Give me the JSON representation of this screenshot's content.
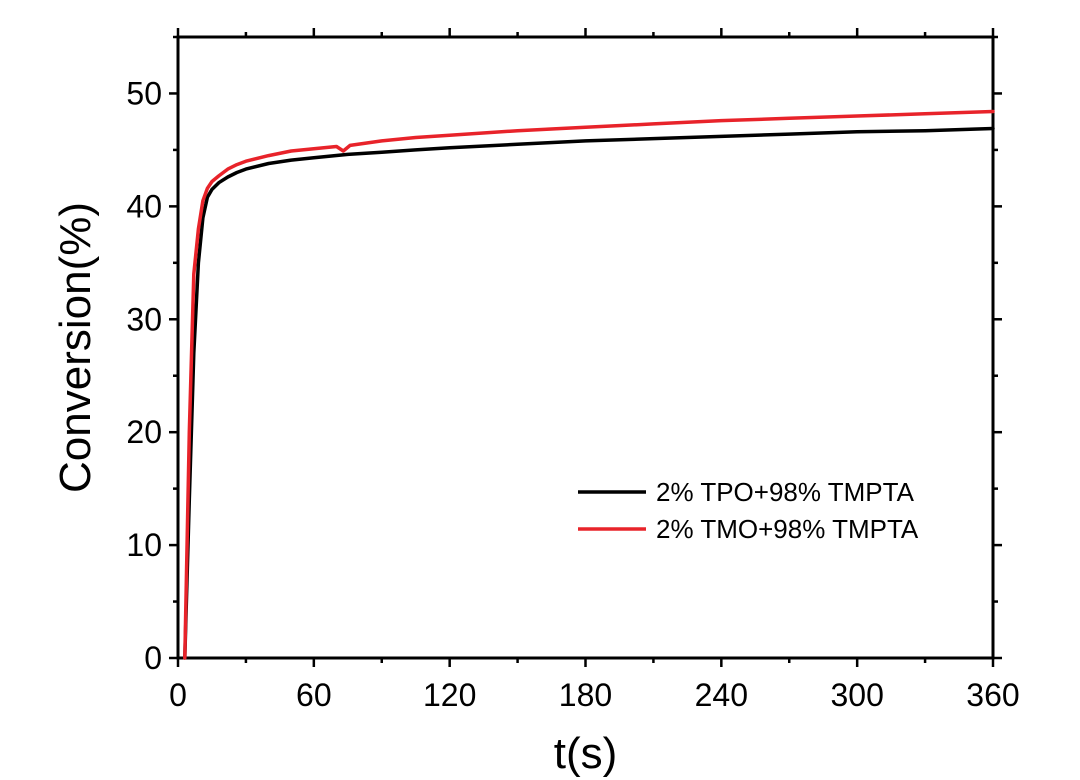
{
  "chart_data": {
    "type": "line",
    "title": "",
    "xlabel": "t(s)",
    "ylabel": "Conversion(%)",
    "xlim": [
      0,
      360
    ],
    "ylim": [
      0,
      55
    ],
    "xticks": [
      0,
      60,
      120,
      180,
      240,
      300,
      360
    ],
    "yticks": [
      0,
      10,
      20,
      30,
      40,
      50
    ],
    "grid": false,
    "legend_position": "lower-right",
    "series": [
      {
        "name": "2% TPO+98% TMPTA",
        "color": "#000000",
        "x": [
          3,
          5,
          7,
          9,
          11,
          13,
          15,
          18,
          22,
          26,
          30,
          40,
          50,
          60,
          75,
          90,
          105,
          120,
          150,
          180,
          210,
          240,
          270,
          300,
          330,
          360
        ],
        "y": [
          0,
          14,
          27,
          35,
          39,
          40.8,
          41.5,
          42.1,
          42.6,
          43,
          43.3,
          43.8,
          44.1,
          44.3,
          44.6,
          44.8,
          45,
          45.2,
          45.5,
          45.8,
          46,
          46.2,
          46.4,
          46.6,
          46.7,
          46.9
        ]
      },
      {
        "name": "2% TMO+98% TMPTA",
        "color": "#e8232a",
        "x": [
          3,
          5,
          7,
          9,
          11,
          13,
          15,
          18,
          22,
          26,
          30,
          40,
          50,
          60,
          70,
          73,
          76,
          90,
          105,
          120,
          150,
          180,
          210,
          240,
          270,
          300,
          330,
          360
        ],
        "y": [
          0,
          20,
          34,
          38,
          40.5,
          41.6,
          42.2,
          42.7,
          43.3,
          43.7,
          44,
          44.5,
          44.9,
          45.1,
          45.3,
          44.9,
          45.4,
          45.8,
          46.1,
          46.3,
          46.7,
          47,
          47.3,
          47.6,
          47.8,
          48,
          48.2,
          48.4
        ]
      }
    ]
  }
}
